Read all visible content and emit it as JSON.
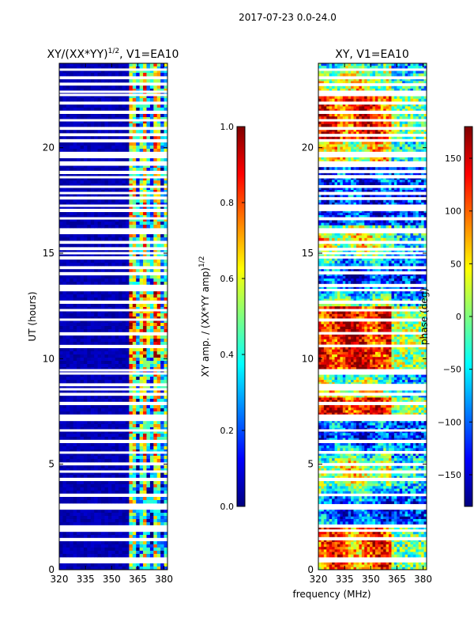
{
  "figure_title": "2017-07-23 0.0-24.0",
  "shared_xlabel": "frequency (MHz)",
  "colormap": [
    "#00007f",
    "#0000ff",
    "#007fff",
    "#00ffff",
    "#7fff7f",
    "#ffff00",
    "#ff7f00",
    "#ff0000",
    "#7f0000"
  ],
  "chart_data": [
    {
      "type": "heatmap",
      "title_main": "XY/(XX*YY)",
      "title_sup": "1/2",
      "title_rest": ", V1=EA10",
      "xlabel": "",
      "ylabel": "UT (hours)",
      "xlim": [
        320,
        382
      ],
      "ylim": [
        0,
        24
      ],
      "xticks": [
        "320",
        "335",
        "350",
        "365",
        "380"
      ],
      "xtick_values": [
        320,
        335,
        350,
        365,
        380
      ],
      "yticks": [
        "0",
        "5",
        "10",
        "15",
        "20"
      ],
      "ytick_values": [
        0,
        5,
        10,
        15,
        20
      ],
      "colorbar": {
        "label_main": "XY amp. / (XX*YY amp)",
        "label_sup": "1/2",
        "range": [
          0.0,
          1.0
        ],
        "ticks": [
          "0.0",
          "0.2",
          "0.4",
          "0.6",
          "0.8",
          "1.0"
        ],
        "tick_values": [
          0.0,
          0.2,
          0.4,
          0.6,
          0.8,
          1.0
        ]
      }
    },
    {
      "type": "heatmap",
      "title_main": "XY, V1=EA10",
      "xlabel": "frequency (MHz)",
      "ylabel": "",
      "xlim": [
        320,
        382
      ],
      "ylim": [
        0,
        24
      ],
      "xticks": [
        "320",
        "335",
        "350",
        "365",
        "380"
      ],
      "xtick_values": [
        320,
        335,
        350,
        365,
        380
      ],
      "yticks": [
        "0",
        "5",
        "10",
        "15",
        "20"
      ],
      "ytick_values": [
        0,
        5,
        10,
        15,
        20
      ],
      "colorbar": {
        "label_main": "phase (deg)",
        "range": [
          -180,
          180
        ],
        "ticks": [
          "−150",
          "−100",
          "−50",
          "0",
          "50",
          "100",
          "150"
        ],
        "tick_values": [
          -150,
          -100,
          -50,
          0,
          50,
          100,
          150
        ]
      }
    }
  ]
}
